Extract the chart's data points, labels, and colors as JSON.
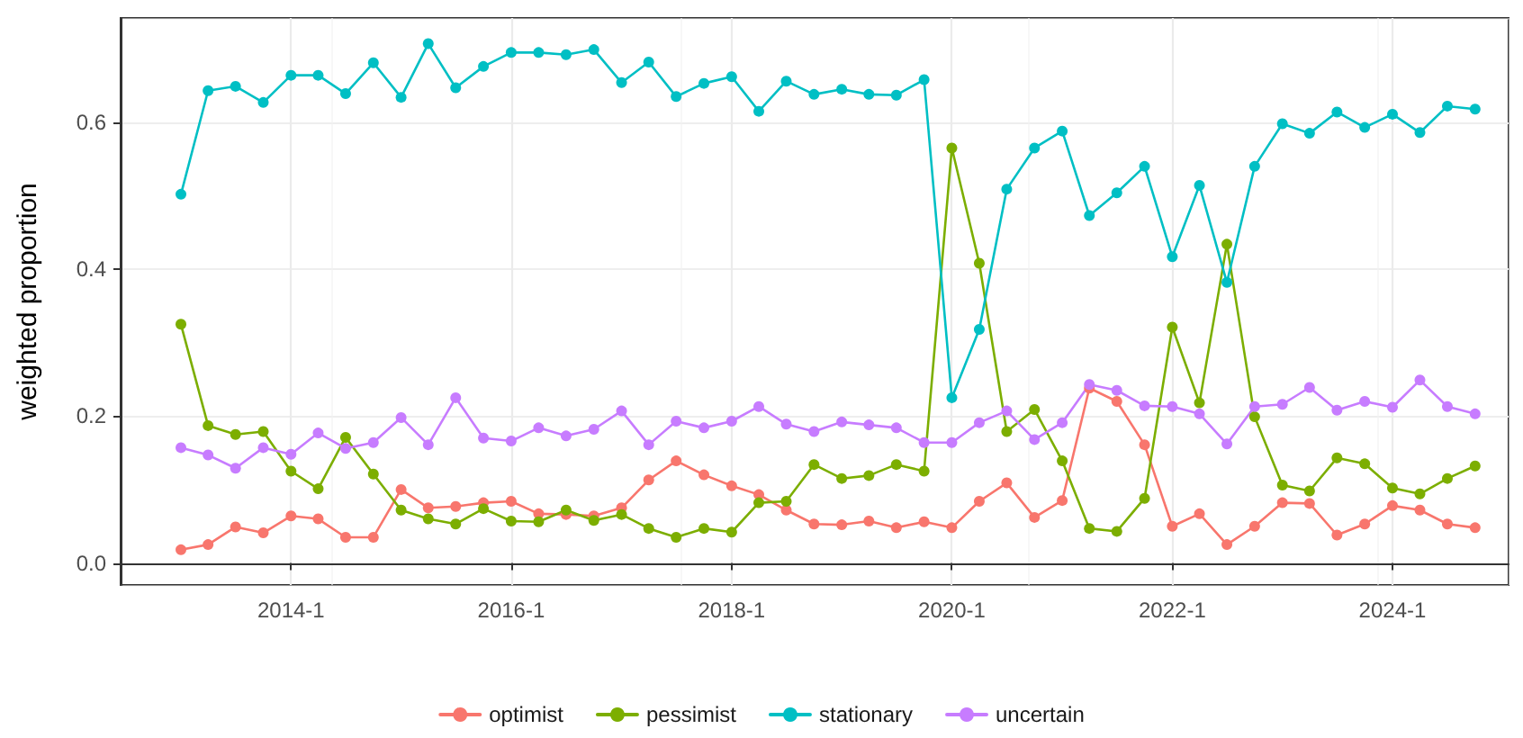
{
  "chart_data": {
    "type": "line",
    "ylabel": "weighted proportion",
    "x": [
      "2013-01",
      "2013-04",
      "2013-07",
      "2013-10",
      "2014-01",
      "2014-04",
      "2014-07",
      "2014-10",
      "2015-01",
      "2015-04",
      "2015-07",
      "2015-10",
      "2016-01",
      "2016-04",
      "2016-07",
      "2016-10",
      "2017-01",
      "2017-04",
      "2017-07",
      "2017-10",
      "2018-01",
      "2018-04",
      "2018-07",
      "2018-10",
      "2019-01",
      "2019-04",
      "2019-07",
      "2019-10",
      "2020-01",
      "2020-04",
      "2020-07",
      "2020-10",
      "2021-01",
      "2021-04",
      "2021-07",
      "2021-10",
      "2022-01",
      "2022-04",
      "2022-07",
      "2022-10",
      "2023-01",
      "2023-04",
      "2023-07",
      "2023-10",
      "2024-01",
      "2024-04",
      "2024-07",
      "2024-10"
    ],
    "series": [
      {
        "name": "optimist",
        "color": "#f8766d",
        "values": [
          0.018,
          0.025,
          0.049,
          0.041,
          0.064,
          0.06,
          0.035,
          0.035,
          0.1,
          0.075,
          0.077,
          0.082,
          0.084,
          0.067,
          0.066,
          0.064,
          0.075,
          0.113,
          0.139,
          0.12,
          0.105,
          0.093,
          0.072,
          0.053,
          0.052,
          0.057,
          0.048,
          0.056,
          0.048,
          0.084,
          0.109,
          0.062,
          0.085,
          0.238,
          0.22,
          0.161,
          0.05,
          0.067,
          0.025,
          0.05,
          0.082,
          0.081,
          0.038,
          0.053,
          0.078,
          0.072,
          0.053,
          0.048
        ]
      },
      {
        "name": "pessimist",
        "color": "#7cae00",
        "values": [
          0.325,
          0.187,
          0.175,
          0.179,
          0.125,
          0.101,
          0.171,
          0.121,
          0.072,
          0.06,
          0.053,
          0.074,
          0.057,
          0.056,
          0.072,
          0.058,
          0.066,
          0.047,
          0.035,
          0.047,
          0.042,
          0.082,
          0.084,
          0.134,
          0.115,
          0.119,
          0.134,
          0.125,
          0.565,
          0.408,
          0.179,
          0.209,
          0.139,
          0.047,
          0.043,
          0.088,
          0.321,
          0.218,
          0.434,
          0.199,
          0.106,
          0.098,
          0.143,
          0.135,
          0.102,
          0.094,
          0.115,
          0.132
        ]
      },
      {
        "name": "stationary",
        "color": "#00bfc4",
        "values": [
          0.502,
          0.643,
          0.649,
          0.627,
          0.664,
          0.664,
          0.639,
          0.681,
          0.634,
          0.707,
          0.647,
          0.676,
          0.695,
          0.695,
          0.692,
          0.699,
          0.654,
          0.682,
          0.635,
          0.653,
          0.662,
          0.615,
          0.656,
          0.638,
          0.645,
          0.638,
          0.637,
          0.658,
          0.225,
          0.318,
          0.509,
          0.565,
          0.588,
          0.473,
          0.504,
          0.54,
          0.417,
          0.514,
          0.382,
          0.54,
          0.598,
          0.585,
          0.614,
          0.593,
          0.611,
          0.586,
          0.622,
          0.618
        ]
      },
      {
        "name": "uncertain",
        "color": "#c77cff",
        "values": [
          0.157,
          0.147,
          0.129,
          0.157,
          0.148,
          0.177,
          0.156,
          0.164,
          0.198,
          0.161,
          0.225,
          0.17,
          0.166,
          0.184,
          0.173,
          0.182,
          0.207,
          0.161,
          0.193,
          0.184,
          0.193,
          0.213,
          0.189,
          0.179,
          0.192,
          0.188,
          0.184,
          0.164,
          0.164,
          0.191,
          0.207,
          0.168,
          0.191,
          0.243,
          0.235,
          0.214,
          0.213,
          0.203,
          0.162,
          0.213,
          0.216,
          0.239,
          0.208,
          0.22,
          0.212,
          0.249,
          0.213,
          0.203
        ]
      }
    ],
    "xlim": [
      "2012-06-15",
      "2025-01-20"
    ],
    "xticks": [
      {
        "value": "2014-01",
        "label": "2014-1"
      },
      {
        "value": "2016-01",
        "label": "2016-1"
      },
      {
        "value": "2018-01",
        "label": "2018-1"
      },
      {
        "value": "2020-01",
        "label": "2020-1"
      },
      {
        "value": "2022-01",
        "label": "2022-1"
      },
      {
        "value": "2024-01",
        "label": "2024-1"
      }
    ],
    "ylim": [
      -0.03,
      0.742
    ],
    "yticks": [
      {
        "value": 0,
        "label": "0.0"
      },
      {
        "value": 0.2,
        "label": "0.2"
      },
      {
        "value": 0.4,
        "label": "0.4"
      },
      {
        "value": 0.6,
        "label": "0.6"
      }
    ],
    "grid": true,
    "legend": "bottom",
    "marker": "circle",
    "line_style": "solid"
  }
}
